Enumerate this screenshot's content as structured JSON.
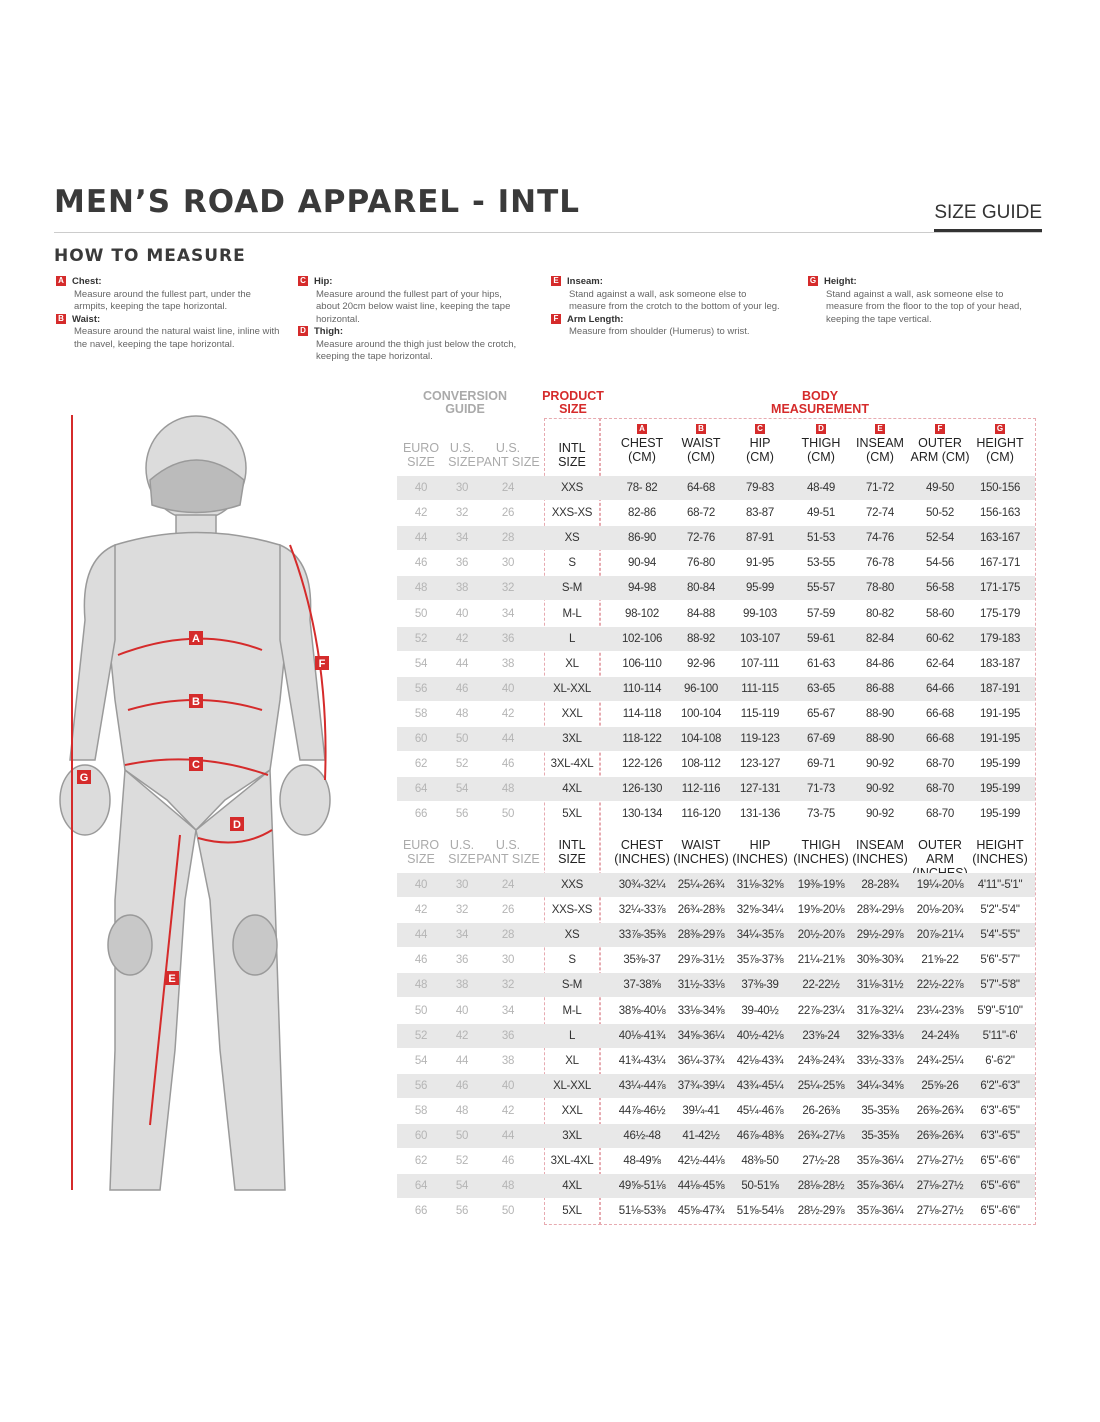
{
  "header": {
    "title": "MEN’S ROAD APPAREL - INTL",
    "size_guide": "SIZE GUIDE"
  },
  "how_to_measure": {
    "heading": "HOW TO MEASURE",
    "items": [
      {
        "letter": "A",
        "label": "Chest:",
        "text": "Measure around the fullest part, under the armpits, keeping the tape horizontal."
      },
      {
        "letter": "B",
        "label": "Waist:",
        "text": "Measure around the natural waist line, inline with the navel, keeping the tape horizontal."
      },
      {
        "letter": "C",
        "label": "Hip:",
        "text": "Measure around the fullest part of your hips, about 20cm below waist line, keeping the tape horizontal."
      },
      {
        "letter": "D",
        "label": "Thigh:",
        "text": "Measure around the thigh just below the crotch, keeping the tape horizontal."
      },
      {
        "letter": "E",
        "label": "Inseam:",
        "text": "Stand against a wall, ask someone else to measure from the crotch to the bottom of your leg."
      },
      {
        "letter": "F",
        "label": "Arm Length:",
        "text": "Measure from shoulder (Humerus) to wrist."
      },
      {
        "letter": "G",
        "label": "Height:",
        "text": "Stand against a wall, ask someone else to measure from the floor to the top of your head, keeping the tape vertical."
      }
    ]
  },
  "figure": {
    "labels": [
      "A",
      "B",
      "C",
      "D",
      "E",
      "F",
      "G"
    ],
    "accent": "#d52b2b"
  },
  "table": {
    "group_headers": {
      "conversion": "CONVERSION GUIDE",
      "product": "PRODUCT SIZE",
      "body": "BODY MEASUREMENT"
    },
    "cm_columns": [
      {
        "letter": "",
        "l1": "EURO",
        "l2": "SIZE"
      },
      {
        "letter": "",
        "l1": "U.S.",
        "l2": "SIZE"
      },
      {
        "letter": "",
        "l1": "U.S.",
        "l2": "PANT SIZE"
      },
      {
        "letter": "",
        "l1": "INTL",
        "l2": "SIZE"
      },
      {
        "letter": "A",
        "l1": "CHEST",
        "l2": "(CM)"
      },
      {
        "letter": "B",
        "l1": "WAIST",
        "l2": "(CM)"
      },
      {
        "letter": "C",
        "l1": "HIP",
        "l2": "(CM)"
      },
      {
        "letter": "D",
        "l1": "THIGH",
        "l2": "(CM)"
      },
      {
        "letter": "E",
        "l1": "INSEAM",
        "l2": "(CM)"
      },
      {
        "letter": "F",
        "l1": "OUTER",
        "l2": "ARM (CM)"
      },
      {
        "letter": "G",
        "l1": "HEIGHT",
        "l2": "(CM)"
      }
    ],
    "inch_columns": [
      {
        "l1": "EURO",
        "l2": "SIZE"
      },
      {
        "l1": "U.S.",
        "l2": "SIZE"
      },
      {
        "l1": "U.S.",
        "l2": "PANT SIZE"
      },
      {
        "l1": "INTL",
        "l2": "SIZE"
      },
      {
        "l1": "CHEST",
        "l2": "(INCHES)"
      },
      {
        "l1": "WAIST",
        "l2": "(INCHES)"
      },
      {
        "l1": "HIP",
        "l2": "(INCHES)"
      },
      {
        "l1": "THIGH",
        "l2": "(INCHES)"
      },
      {
        "l1": "INSEAM",
        "l2": "(INCHES)"
      },
      {
        "l1": "OUTER ARM",
        "l2": "(INCHES)"
      },
      {
        "l1": "HEIGHT",
        "l2": "(INCHES)"
      }
    ],
    "cm_rows": [
      [
        "40",
        "30",
        "24",
        "XXS",
        "78- 82",
        "64-68",
        "79-83",
        "48-49",
        "71-72",
        "49-50",
        "150-156"
      ],
      [
        "42",
        "32",
        "26",
        "XXS-XS",
        "82-86",
        "68-72",
        "83-87",
        "49-51",
        "72-74",
        "50-52",
        "156-163"
      ],
      [
        "44",
        "34",
        "28",
        "XS",
        "86-90",
        "72-76",
        "87-91",
        "51-53",
        "74-76",
        "52-54",
        "163-167"
      ],
      [
        "46",
        "36",
        "30",
        "S",
        "90-94",
        "76-80",
        "91-95",
        "53-55",
        "76-78",
        "54-56",
        "167-171"
      ],
      [
        "48",
        "38",
        "32",
        "S-M",
        "94-98",
        "80-84",
        "95-99",
        "55-57",
        "78-80",
        "56-58",
        "171-175"
      ],
      [
        "50",
        "40",
        "34",
        "M-L",
        "98-102",
        "84-88",
        "99-103",
        "57-59",
        "80-82",
        "58-60",
        "175-179"
      ],
      [
        "52",
        "42",
        "36",
        "L",
        "102-106",
        "88-92",
        "103-107",
        "59-61",
        "82-84",
        "60-62",
        "179-183"
      ],
      [
        "54",
        "44",
        "38",
        "XL",
        "106-110",
        "92-96",
        "107-111",
        "61-63",
        "84-86",
        "62-64",
        "183-187"
      ],
      [
        "56",
        "46",
        "40",
        "XL-XXL",
        "110-114",
        "96-100",
        "111-115",
        "63-65",
        "86-88",
        "64-66",
        "187-191"
      ],
      [
        "58",
        "48",
        "42",
        "XXL",
        "114-118",
        "100-104",
        "115-119",
        "65-67",
        "88-90",
        "66-68",
        "191-195"
      ],
      [
        "60",
        "50",
        "44",
        "3XL",
        "118-122",
        "104-108",
        "119-123",
        "67-69",
        "88-90",
        "66-68",
        "191-195"
      ],
      [
        "62",
        "52",
        "46",
        "3XL-4XL",
        "122-126",
        "108-112",
        "123-127",
        "69-71",
        "90-92",
        "68-70",
        "195-199"
      ],
      [
        "64",
        "54",
        "48",
        "4XL",
        "126-130",
        "112-116",
        "127-131",
        "71-73",
        "90-92",
        "68-70",
        "195-199"
      ],
      [
        "66",
        "56",
        "50",
        "5XL",
        "130-134",
        "116-120",
        "131-136",
        "73-75",
        "90-92",
        "68-70",
        "195-199"
      ]
    ],
    "inch_rows": [
      [
        "40",
        "30",
        "24",
        "XXS",
        "30¾-32¼",
        "25¼-26¾",
        "31⅛-32⅝",
        "19⅜-19⅝",
        "28-28¾",
        "19¼-20⅛",
        "4'11\"-5'1\""
      ],
      [
        "42",
        "32",
        "26",
        "XXS-XS",
        "32¼-33⅞",
        "26¾-28⅜",
        "32⅝-34¼",
        "19⅝-20⅛",
        "28¾-29⅛",
        "20⅛-20¾",
        "5'2\"-5'4\""
      ],
      [
        "44",
        "34",
        "28",
        "XS",
        "33⅞-35⅜",
        "28⅜-29⅞",
        "34¼-35⅞",
        "20½-20⅞",
        "29½-29⅞",
        "20⅞-21¼",
        "5'4\"-5'5\""
      ],
      [
        "46",
        "36",
        "30",
        "S",
        "35⅜-37",
        "29⅞-31½",
        "35⅞-37⅜",
        "21¼-21⅝",
        "30⅜-30¾",
        "21⅝-22",
        "5'6\"-5'7\""
      ],
      [
        "48",
        "38",
        "32",
        "S-M",
        "37-38⅝",
        "31½-33⅛",
        "37⅜-39",
        "22-22½",
        "31⅛-31½",
        "22½-22⅞",
        "5'7\"-5'8\""
      ],
      [
        "50",
        "40",
        "34",
        "M-L",
        "38⅝-40⅛",
        "33⅛-34⅝",
        "39-40½",
        "22⅞-23¼",
        "31⅞-32¼",
        "23¼-23⅝",
        "5'9\"-5'10\""
      ],
      [
        "52",
        "42",
        "36",
        "L",
        "40⅛-41¾",
        "34⅝-36¼",
        "40½-42⅛",
        "23⅝-24",
        "32⅝-33⅛",
        "24-24⅜",
        "5'11\"-6'"
      ],
      [
        "54",
        "44",
        "38",
        "XL",
        "41¾-43¼",
        "36¼-37¾",
        "42⅛-43¾",
        "24⅜-24¾",
        "33½-33⅞",
        "24¾-25¼",
        "6'-6'2\""
      ],
      [
        "56",
        "46",
        "40",
        "XL-XXL",
        "43¼-44⅞",
        "37¾-39¼",
        "43¾-45¼",
        "25¼-25⅝",
        "34¼-34⅝",
        "25⅝-26",
        "6'2\"-6'3\""
      ],
      [
        "58",
        "48",
        "42",
        "XXL",
        "44⅞-46½",
        "39¼-41",
        "45¼-46⅞",
        "26-26⅜",
        "35-35⅜",
        "26⅜-26¾",
        "6'3\"-6'5\""
      ],
      [
        "60",
        "50",
        "44",
        "3XL",
        "46½-48",
        "41-42½",
        "46⅞-48⅜",
        "26¾-27⅛",
        "35-35⅜",
        "26⅜-26¾",
        "6'3\"-6'5\""
      ],
      [
        "62",
        "52",
        "46",
        "3XL-4XL",
        "48-49⅝",
        "42½-44⅛",
        "48⅜-50",
        "27½-28",
        "35⅞-36¼",
        "27⅛-27½",
        "6'5\"-6'6\""
      ],
      [
        "64",
        "54",
        "48",
        "4XL",
        "49⅝-51⅛",
        "44⅛-45⅝",
        "50-51⅝",
        "28⅛-28½",
        "35⅞-36¼",
        "27⅛-27½",
        "6'5\"-6'6\""
      ],
      [
        "66",
        "56",
        "50",
        "5XL",
        "51⅛-53⅜",
        "45⅝-47¾",
        "51⅝-54⅛",
        "28½-29⅞",
        "35⅞-36¼",
        "27⅛-27½",
        "6'5\"-6'6\""
      ]
    ]
  }
}
